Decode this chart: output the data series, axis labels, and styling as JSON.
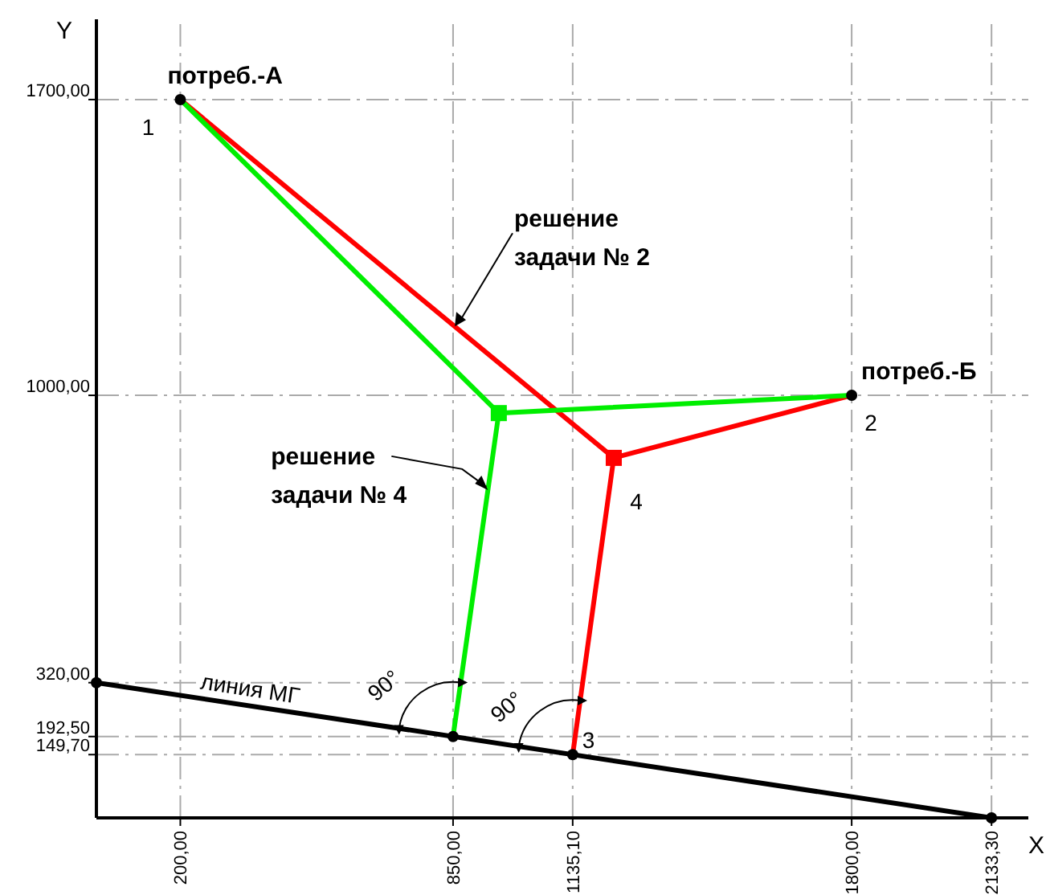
{
  "chart_data": {
    "type": "line",
    "xlabel": "X",
    "ylabel": "Y",
    "xlim": [
      0,
      2221
    ],
    "ylim": [
      0,
      1890
    ],
    "xticks": [
      {
        "value": 200,
        "label": "200,00"
      },
      {
        "value": 850,
        "label": "850,00"
      },
      {
        "value": 1135.1,
        "label": "1135,10"
      },
      {
        "value": 1800,
        "label": "1800,00"
      },
      {
        "value": 2133.3,
        "label": "2133,30"
      }
    ],
    "yticks": [
      {
        "value": 149.7,
        "label": "149,70"
      },
      {
        "value": 192.5,
        "label": "192,50"
      },
      {
        "value": 320,
        "label": "320,00"
      },
      {
        "value": 1000,
        "label": "1000,00"
      },
      {
        "value": 1700,
        "label": "1700,00"
      }
    ],
    "grid": true,
    "line_style": "solid",
    "series": [
      {
        "color": "#ff0000",
        "x": [
          200,
          1233,
          1800
        ],
        "values": [
          1700,
          852,
          1000
        ]
      },
      {
        "color": "#ff0000",
        "x": [
          1233,
          1135.1
        ],
        "values": [
          852,
          149.7
        ]
      },
      {
        "color": "#00ee00",
        "x": [
          200,
          959,
          1800
        ],
        "values": [
          1700,
          958,
          1000
        ]
      },
      {
        "color": "#00ee00",
        "x": [
          959,
          850
        ],
        "values": [
          958,
          192.5
        ]
      },
      {
        "color": "#000000",
        "x": [
          0,
          2133.3
        ],
        "values": [
          320,
          0
        ]
      },
      {
        "type": "scatter",
        "marker": "square",
        "color": "#ff0000",
        "x": [
          1233
        ],
        "values": [
          852
        ]
      },
      {
        "type": "scatter",
        "marker": "square",
        "color": "#00ee00",
        "x": [
          959
        ],
        "values": [
          958
        ]
      },
      {
        "type": "scatter",
        "marker": "circle",
        "color": "#000000",
        "x": [
          200,
          1800,
          1135.1,
          850,
          0,
          2133.3
        ],
        "values": [
          1700,
          1000,
          149.7,
          192.5,
          320,
          0
        ]
      }
    ],
    "annotations": [
      {
        "text": "потреб.-А",
        "x": 200,
        "y": 1700
      },
      {
        "text": "1",
        "x": 200,
        "y": 1700
      },
      {
        "text": "потреб.-Б",
        "x": 1800,
        "y": 1000
      },
      {
        "text": "2",
        "x": 1800,
        "y": 1000
      },
      {
        "text": "3",
        "x": 1135.1,
        "y": 149.7
      },
      {
        "text": "4",
        "x": 1233,
        "y": 852
      },
      {
        "text": "решение\nзадачи № 2",
        "x": 854,
        "y": 1163
      },
      {
        "text": "решение\nзадачи № 4",
        "x": 933,
        "y": 776
      },
      {
        "text": "линия МГ",
        "x": 364,
        "y": 265
      },
      {
        "text": "90°",
        "x": 850,
        "y": 192.5
      },
      {
        "text": "90°",
        "x": 1135.1,
        "y": 149.7
      }
    ]
  }
}
